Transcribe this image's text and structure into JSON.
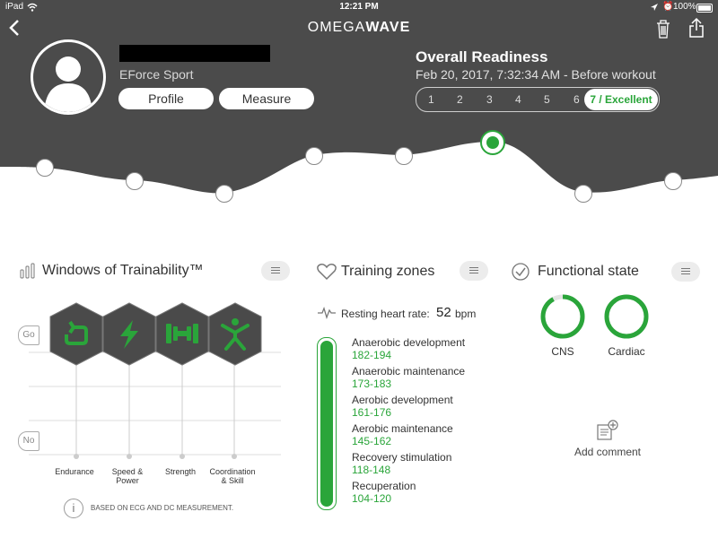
{
  "status_bar": {
    "device": "iPad",
    "time": "12:21 PM",
    "battery": "100%"
  },
  "header": {
    "logo_a": "OMEGA",
    "logo_b": "WAVE",
    "sport": "EForce Sport",
    "profile_label": "Profile",
    "measure_label": "Measure"
  },
  "readiness": {
    "title": "Overall Readiness",
    "date": "Feb 20, 2017, 7:32:34 AM - Before workout",
    "scale": [
      "1",
      "2",
      "3",
      "4",
      "5",
      "6"
    ],
    "selected_label": "7 / Excellent",
    "selected_value": 7,
    "max_value": 7
  },
  "trend": {
    "points": 8,
    "selected_index": 5,
    "accent": "#2aa53a"
  },
  "windows": {
    "title": "Windows of Trainability™",
    "go_label": "Go",
    "no_label": "No",
    "categories": [
      {
        "label_1": "Endurance",
        "label_2": "",
        "icon": "cycle-icon"
      },
      {
        "label_1": "Speed &",
        "label_2": "Power",
        "icon": "lightning-icon"
      },
      {
        "label_1": "Strength",
        "label_2": "",
        "icon": "dumbbell-icon"
      },
      {
        "label_1": "Coordination",
        "label_2": "& Skill",
        "icon": "person-icon"
      }
    ],
    "note": "BASED ON ECG AND DC MEASUREMENT."
  },
  "zones": {
    "title": "Training zones",
    "rhr_label": "Resting heart rate:",
    "rhr_value": "52",
    "rhr_unit": "bpm",
    "items": [
      {
        "name": "Anaerobic development",
        "range": "182-194"
      },
      {
        "name": "Anaerobic maintenance",
        "range": "173-183"
      },
      {
        "name": "Aerobic development",
        "range": "161-176"
      },
      {
        "name": "Aerobic maintenance",
        "range": "145-162"
      },
      {
        "name": "Recovery stimulation",
        "range": "118-148"
      },
      {
        "name": "Recuperation",
        "range": "104-120"
      }
    ]
  },
  "functional": {
    "title": "Functional state",
    "cns_label": "CNS",
    "cns_fill": 0.92,
    "cardiac_label": "Cardiac",
    "cardiac_fill": 1.0,
    "add_comment": "Add comment"
  },
  "colors": {
    "header_bg": "#4b4b4b",
    "accent_green": "#2aa53a",
    "hex_dark": "#4a4a4a"
  }
}
